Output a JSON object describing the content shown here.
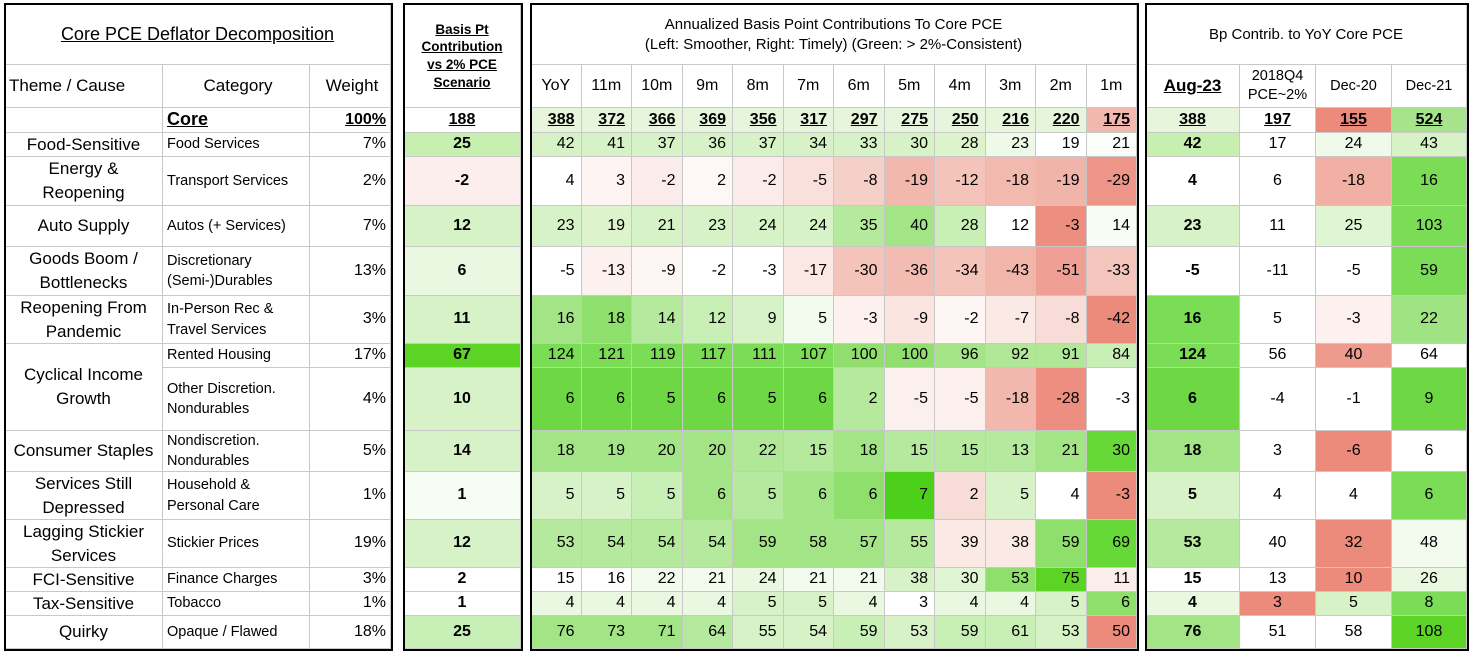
{
  "left": {
    "title": "Core PCE Deflator Decomposition",
    "headers": [
      "Theme / Cause",
      "Category",
      "Weight"
    ]
  },
  "basis": {
    "header": "Basis Pt Contribution vs 2% PCE Scenario"
  },
  "annualized": {
    "title": "Annualized Basis Point Contributions To Core PCE",
    "subtitle": "(Left: Smoother, Right: Timely) (Green: > 2%-Consistent)",
    "columns": [
      "YoY",
      "11m",
      "10m",
      "9m",
      "8m",
      "7m",
      "6m",
      "5m",
      "4m",
      "3m",
      "2m",
      "1m"
    ]
  },
  "yoy": {
    "title": "Bp Contrib. to YoY Core PCE",
    "columns": [
      "Aug-23",
      "2018Q4 PCE~2%",
      "Dec-20",
      "Dec-21"
    ]
  },
  "core": {
    "category": "Core",
    "weight": "100%",
    "basis": 188,
    "annualized": [
      388,
      372,
      366,
      369,
      356,
      317,
      297,
      275,
      250,
      216,
      220,
      175
    ],
    "yoy": [
      388,
      197,
      155,
      524
    ],
    "fills": {
      "basis": "#ffffff",
      "annualized": [
        "#e6f5dc",
        "#e6f5dc",
        "#e6f5dc",
        "#e6f5dc",
        "#e6f5dc",
        "#e6f5dc",
        "#e6f5dc",
        "#e6f5dc",
        "#e6f5dc",
        "#e6f5dc",
        "#e6f5dc",
        "#f2b8ae"
      ],
      "yoy": [
        "#e6f5dc",
        "#ffffff",
        "#ec8a7c",
        "#a6e38a"
      ]
    }
  },
  "groups": [
    {
      "theme": "Food-Sensitive",
      "items": [
        {
          "category": "Food Services",
          "weight": "7%",
          "basis": 25,
          "annualized": [
            42,
            41,
            37,
            36,
            37,
            34,
            33,
            30,
            28,
            23,
            19,
            21
          ],
          "yoy": [
            42,
            17,
            24,
            43
          ],
          "fills": {
            "basis": "#c6efb0",
            "annualized": [
              "#d7f2c6",
              "#d7f2c6",
              "#d7f2c6",
              "#d7f2c6",
              "#d7f2c6",
              "#d7f2c6",
              "#d7f2c6",
              "#d7f2c6",
              "#dcf3cc",
              "#eef9e8",
              "#ffffff",
              "#fafdf8"
            ],
            "yoy": [
              "#c6efb0",
              "#ffffff",
              "#f0faea",
              "#d7f2c6"
            ]
          }
        }
      ]
    },
    {
      "theme": "Energy & Reopening",
      "items": [
        {
          "category": "Transport Services",
          "weight": "2%",
          "basis": -2,
          "annualized": [
            4,
            3,
            -2,
            2,
            -2,
            -5,
            -8,
            -19,
            -12,
            -18,
            -19,
            -29
          ],
          "yoy": [
            4,
            6,
            -18,
            16
          ],
          "fills": {
            "basis": "#fbeeec",
            "annualized": [
              "#ffffff",
              "#fdf4f3",
              "#fbeceb",
              "#fdf7f6",
              "#fbeceb",
              "#f9e0dc",
              "#f5d0c9",
              "#f2b8ad",
              "#f4c4bb",
              "#f2baaf",
              "#f0b4a9",
              "#ec9588"
            ],
            "yoy": [
              "#ffffff",
              "#ffffff",
              "#f2b0a5",
              "#7bdc55"
            ]
          }
        }
      ]
    },
    {
      "theme": "Auto Supply",
      "items": [
        {
          "category": "Autos (+ Services)",
          "weight": "7%",
          "basis": 12,
          "annualized": [
            23,
            19,
            21,
            23,
            24,
            24,
            35,
            40,
            28,
            12,
            -3,
            14
          ],
          "yoy": [
            23,
            11,
            25,
            103
          ],
          "fills": {
            "basis": "#d7f2c6",
            "annualized": [
              "#d7f2c6",
              "#dcf3cc",
              "#d7f2c6",
              "#d7f2c6",
              "#d7f2c6",
              "#d7f2c6",
              "#b5e99e",
              "#a3e486",
              "#c8efb5",
              "#ffffff",
              "#ec8e80",
              "#f8fcf5"
            ],
            "yoy": [
              "#d7f2c6",
              "#ffffff",
              "#e0f5d3",
              "#7bdc55"
            ]
          }
        }
      ]
    },
    {
      "theme": "Goods Boom / Bottlenecks",
      "items": [
        {
          "category": "Discretionary (Semi-)Durables",
          "weight": "13%",
          "basis": 6,
          "annualized": [
            -5,
            -13,
            -9,
            -2,
            -3,
            -17,
            -30,
            -36,
            -34,
            -43,
            -51,
            -33
          ],
          "yoy": [
            -5,
            -11,
            -5,
            59
          ],
          "fills": {
            "basis": "#eaf8e1",
            "annualized": [
              "#ffffff",
              "#fdf1ef",
              "#fdf6f5",
              "#ffffff",
              "#ffffff",
              "#fbe7e4",
              "#f4c3ba",
              "#f3bcb2",
              "#f4c3ba",
              "#f2b5aa",
              "#ef9f93",
              "#f4c5bd"
            ],
            "yoy": [
              "#ffffff",
              "#ffffff",
              "#ffffff",
              "#7bdc55"
            ]
          }
        }
      ]
    },
    {
      "theme": "Reopening From Pandemic",
      "items": [
        {
          "category": "In-Person Rec & Travel Services",
          "weight": "3%",
          "basis": 11,
          "annualized": [
            16,
            18,
            14,
            12,
            9,
            5,
            -3,
            -9,
            -2,
            -7,
            -8,
            -42
          ],
          "yoy": [
            16,
            5,
            -3,
            22
          ],
          "fills": {
            "basis": "#d7f2c6",
            "annualized": [
              "#a3e486",
              "#8fdf6c",
              "#b5e99e",
              "#c8efb5",
              "#d7f2c6",
              "#f3fbef",
              "#fdf1ef",
              "#fbe5e1",
              "#fdf6f5",
              "#fbe9e6",
              "#f8dcd7",
              "#ec8a7c"
            ],
            "yoy": [
              "#7bdc55",
              "#ffffff",
              "#fdf1ef",
              "#9fe383"
            ]
          }
        }
      ]
    },
    {
      "theme": "Cyclical Income Growth",
      "items": [
        {
          "category": "Rented Housing",
          "weight": "17%",
          "basis": 67,
          "annualized": [
            124,
            121,
            119,
            117,
            111,
            107,
            100,
            100,
            96,
            92,
            91,
            84
          ],
          "yoy": [
            124,
            56,
            40,
            64
          ],
          "fills": {
            "basis": "#5bd426",
            "annualized": [
              "#7bdc55",
              "#7bdc55",
              "#7bdc55",
              "#7bdc55",
              "#7bdc55",
              "#7bdc55",
              "#90df6e",
              "#90df6e",
              "#a3e486",
              "#b0e898",
              "#b0e898",
              "#c8efb5"
            ],
            "yoy": [
              "#7bdc55",
              "#ffffff",
              "#ee9a8d",
              "#ffffff"
            ]
          }
        },
        {
          "category": "Other Discretion. Nondurables",
          "weight": "4%",
          "basis": 10,
          "annualized": [
            6,
            6,
            5,
            6,
            5,
            6,
            2,
            -5,
            -5,
            -18,
            -28,
            -3
          ],
          "yoy": [
            6,
            -4,
            -1,
            9
          ],
          "fills": {
            "basis": "#d7f2c6",
            "annualized": [
              "#6ed844",
              "#6ed844",
              "#6ed844",
              "#6ed844",
              "#6ed844",
              "#6ed844",
              "#b5e99e",
              "#fbf0ee",
              "#fbf0ee",
              "#f2b8ad",
              "#ec8e80",
              "#ffffff"
            ],
            "yoy": [
              "#6ed844",
              "#ffffff",
              "#ffffff",
              "#6ed844"
            ]
          }
        }
      ]
    },
    {
      "theme": "Consumer Staples",
      "items": [
        {
          "category": "Nondiscretion. Nondurables",
          "weight": "5%",
          "basis": 14,
          "annualized": [
            18,
            19,
            20,
            20,
            22,
            15,
            18,
            15,
            15,
            13,
            21,
            30
          ],
          "yoy": [
            18,
            3,
            -6,
            6
          ],
          "fills": {
            "basis": "#d7f2c6",
            "annualized": [
              "#a3e486",
              "#a3e486",
              "#a3e486",
              "#a3e486",
              "#b0e898",
              "#b5e99e",
              "#a3e486",
              "#b5e99e",
              "#b5e99e",
              "#b5e99e",
              "#a3e486",
              "#66d838"
            ],
            "yoy": [
              "#a3e486",
              "#ffffff",
              "#ec8a7c",
              "#ffffff"
            ]
          }
        }
      ]
    },
    {
      "theme": "Services Still Depressed",
      "items": [
        {
          "category": "Household & Personal Care",
          "weight": "1%",
          "basis": 1,
          "annualized": [
            5,
            5,
            5,
            6,
            5,
            6,
            6,
            7,
            2,
            5,
            4,
            -3
          ],
          "yoy": [
            5,
            4,
            4,
            6
          ],
          "fills": {
            "basis": "#f7fcf5",
            "annualized": [
              "#d7f2c6",
              "#d7f2c6",
              "#c8efb5",
              "#a3e486",
              "#b5e99e",
              "#a3e486",
              "#8fdf6c",
              "#4cd01a",
              "#f8dcd7",
              "#d7f2c6",
              "#ffffff",
              "#ec8a7c"
            ],
            "yoy": [
              "#d7f2c6",
              "#ffffff",
              "#ffffff",
              "#7bdc55"
            ]
          }
        }
      ]
    },
    {
      "theme": "Lagging Stickier Services",
      "items": [
        {
          "category": "Stickier Prices",
          "weight": "19%",
          "basis": 12,
          "annualized": [
            53,
            54,
            54,
            54,
            59,
            58,
            57,
            55,
            39,
            38,
            59,
            69
          ],
          "yoy": [
            53,
            40,
            32,
            48
          ],
          "fills": {
            "basis": "#d7f2c6",
            "annualized": [
              "#b5e99e",
              "#b5e99e",
              "#b5e99e",
              "#b5e99e",
              "#a3e486",
              "#a3e486",
              "#a3e486",
              "#b5e99e",
              "#fbe9e6",
              "#fbe9e6",
              "#8fdf6c",
              "#66d838"
            ],
            "yoy": [
              "#b5e99e",
              "#ffffff",
              "#ec8a7c",
              "#f3fbef"
            ]
          }
        }
      ]
    },
    {
      "theme": "FCI-Sensitive",
      "items": [
        {
          "category": "Finance Charges",
          "weight": "3%",
          "basis": 2,
          "annualized": [
            15,
            16,
            22,
            21,
            24,
            21,
            21,
            38,
            30,
            53,
            75,
            11
          ],
          "yoy": [
            15,
            13,
            10,
            26
          ],
          "fills": {
            "basis": "#ffffff",
            "annualized": [
              "#ffffff",
              "#ffffff",
              "#f3fbef",
              "#f3fbef",
              "#eaf8e1",
              "#f3fbef",
              "#f3fbef",
              "#d7f2c6",
              "#e0f5d3",
              "#8fdf6c",
              "#5bd426",
              "#fbeeec"
            ],
            "yoy": [
              "#ffffff",
              "#ffffff",
              "#ec8a7c",
              "#eaf8e1"
            ]
          }
        }
      ]
    },
    {
      "theme": "Tax-Sensitive",
      "items": [
        {
          "category": "Tobacco",
          "weight": "1%",
          "basis": 1,
          "annualized": [
            4,
            4,
            4,
            4,
            5,
            5,
            4,
            3,
            4,
            4,
            5,
            6
          ],
          "yoy": [
            4,
            3,
            5,
            8
          ],
          "fills": {
            "basis": "#ffffff",
            "annualized": [
              "#eaf8e1",
              "#eaf8e1",
              "#eaf8e1",
              "#eaf8e1",
              "#d7f2c6",
              "#d7f2c6",
              "#eaf8e1",
              "#ffffff",
              "#eaf8e1",
              "#eaf8e1",
              "#d7f2c6",
              "#8fdf6c"
            ],
            "yoy": [
              "#eaf8e1",
              "#ec8a7c",
              "#d7f2c6",
              "#7bdc55"
            ]
          }
        }
      ]
    },
    {
      "theme": "Quirky",
      "items": [
        {
          "category": "Opaque / Flawed",
          "weight": "18%",
          "basis": 25,
          "annualized": [
            76,
            73,
            71,
            64,
            55,
            54,
            59,
            53,
            59,
            61,
            53,
            50
          ],
          "yoy": [
            76,
            51,
            58,
            108
          ],
          "fills": {
            "basis": "#c8efb5",
            "annualized": [
              "#a3e486",
              "#a3e486",
              "#a3e486",
              "#b5e99e",
              "#d7f2c6",
              "#d7f2c6",
              "#c8efb5",
              "#d7f2c6",
              "#c8efb5",
              "#c8efb5",
              "#d7f2c6",
              "#ec8a7c"
            ],
            "yoy": [
              "#a3e486",
              "#ffffff",
              "#ffffff",
              "#5bd426"
            ]
          }
        }
      ]
    }
  ]
}
